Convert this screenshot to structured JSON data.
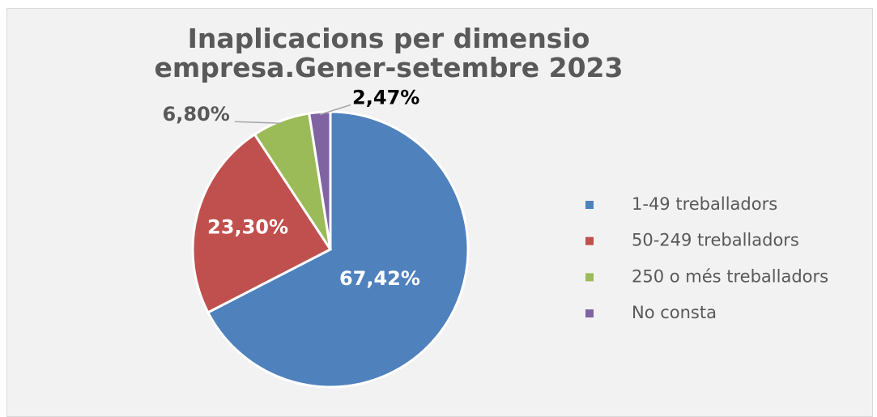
{
  "chart_data": {
    "type": "pie",
    "title": "Inaplicacions per dimensio empresa.Gener-setembre 2023",
    "categories": [
      "1-49 treballadors",
      "50-249 treballadors",
      "250 o més treballadors",
      "No consta"
    ],
    "values": [
      67.42,
      23.3,
      6.8,
      2.47
    ],
    "value_labels": [
      "67,42%",
      "23,30%",
      "6,80%",
      "2,47%"
    ],
    "colors": [
      "#4f81bd",
      "#c0504d",
      "#9bbb59",
      "#8064a2"
    ],
    "label_colors": [
      "#ffffff",
      "#ffffff",
      "#595959",
      "#000000"
    ],
    "legend": "right"
  }
}
